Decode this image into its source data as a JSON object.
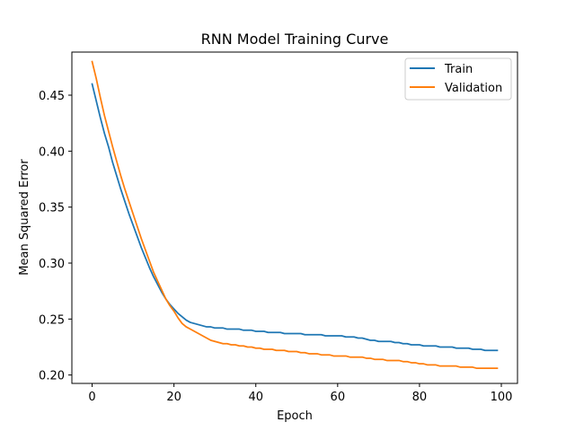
{
  "chart_data": {
    "type": "line",
    "title": "RNN Model Training Curve",
    "xlabel": "Epoch",
    "ylabel": "Mean Squared Error",
    "xlim": [
      -4.95,
      103.95
    ],
    "ylim": [
      0.1925,
      0.4885
    ],
    "xticks": [
      0,
      20,
      40,
      60,
      80,
      100
    ],
    "xtick_labels": [
      "0",
      "20",
      "40",
      "60",
      "80",
      "100"
    ],
    "yticks": [
      0.2,
      0.25,
      0.3,
      0.35,
      0.4,
      0.45
    ],
    "ytick_labels": [
      "0.20",
      "0.25",
      "0.30",
      "0.35",
      "0.40",
      "0.45"
    ],
    "grid": false,
    "legend_position": "upper-right",
    "series": [
      {
        "name": "Train",
        "color": "#1f77b4",
        "x": [
          0,
          1,
          2,
          3,
          4,
          5,
          6,
          7,
          8,
          9,
          10,
          11,
          12,
          13,
          14,
          15,
          16,
          17,
          18,
          19,
          20,
          21,
          22,
          23,
          24,
          25,
          26,
          27,
          28,
          29,
          30,
          31,
          32,
          33,
          34,
          35,
          36,
          37,
          38,
          39,
          40,
          41,
          42,
          43,
          44,
          45,
          46,
          47,
          48,
          49,
          50,
          51,
          52,
          53,
          54,
          55,
          56,
          57,
          58,
          59,
          60,
          61,
          62,
          63,
          64,
          65,
          66,
          67,
          68,
          69,
          70,
          71,
          72,
          73,
          74,
          75,
          76,
          77,
          78,
          79,
          80,
          81,
          82,
          83,
          84,
          85,
          86,
          87,
          88,
          89,
          90,
          91,
          92,
          93,
          94,
          95,
          96,
          97,
          98,
          99
        ],
        "values": [
          0.46,
          0.445,
          0.43,
          0.416,
          0.404,
          0.39,
          0.378,
          0.366,
          0.355,
          0.344,
          0.334,
          0.324,
          0.314,
          0.305,
          0.296,
          0.288,
          0.281,
          0.274,
          0.268,
          0.263,
          0.259,
          0.255,
          0.252,
          0.249,
          0.247,
          0.246,
          0.245,
          0.244,
          0.243,
          0.243,
          0.242,
          0.242,
          0.242,
          0.241,
          0.241,
          0.241,
          0.241,
          0.24,
          0.24,
          0.24,
          0.239,
          0.239,
          0.239,
          0.238,
          0.238,
          0.238,
          0.238,
          0.237,
          0.237,
          0.237,
          0.237,
          0.237,
          0.236,
          0.236,
          0.236,
          0.236,
          0.236,
          0.235,
          0.235,
          0.235,
          0.235,
          0.235,
          0.234,
          0.234,
          0.234,
          0.233,
          0.233,
          0.232,
          0.231,
          0.231,
          0.23,
          0.23,
          0.23,
          0.23,
          0.229,
          0.229,
          0.228,
          0.228,
          0.227,
          0.227,
          0.227,
          0.226,
          0.226,
          0.226,
          0.226,
          0.225,
          0.225,
          0.225,
          0.225,
          0.224,
          0.224,
          0.224,
          0.224,
          0.223,
          0.223,
          0.223,
          0.222,
          0.222,
          0.222,
          0.222
        ]
      },
      {
        "name": "Validation",
        "color": "#ff7f0e",
        "x": [
          0,
          1,
          2,
          3,
          4,
          5,
          6,
          7,
          8,
          9,
          10,
          11,
          12,
          13,
          14,
          15,
          16,
          17,
          18,
          19,
          20,
          21,
          22,
          23,
          24,
          25,
          26,
          27,
          28,
          29,
          30,
          31,
          32,
          33,
          34,
          35,
          36,
          37,
          38,
          39,
          40,
          41,
          42,
          43,
          44,
          45,
          46,
          47,
          48,
          49,
          50,
          51,
          52,
          53,
          54,
          55,
          56,
          57,
          58,
          59,
          60,
          61,
          62,
          63,
          64,
          65,
          66,
          67,
          68,
          69,
          70,
          71,
          72,
          73,
          74,
          75,
          76,
          77,
          78,
          79,
          80,
          81,
          82,
          83,
          84,
          85,
          86,
          87,
          88,
          89,
          90,
          91,
          92,
          93,
          94,
          95,
          96,
          97,
          98,
          99
        ],
        "values": [
          0.48,
          0.465,
          0.448,
          0.432,
          0.418,
          0.404,
          0.391,
          0.378,
          0.366,
          0.355,
          0.344,
          0.333,
          0.322,
          0.312,
          0.302,
          0.292,
          0.284,
          0.276,
          0.268,
          0.262,
          0.257,
          0.251,
          0.246,
          0.243,
          0.241,
          0.239,
          0.237,
          0.235,
          0.233,
          0.231,
          0.23,
          0.229,
          0.228,
          0.228,
          0.227,
          0.227,
          0.226,
          0.226,
          0.225,
          0.225,
          0.224,
          0.224,
          0.223,
          0.223,
          0.223,
          0.222,
          0.222,
          0.222,
          0.221,
          0.221,
          0.221,
          0.22,
          0.22,
          0.219,
          0.219,
          0.219,
          0.218,
          0.218,
          0.218,
          0.217,
          0.217,
          0.217,
          0.217,
          0.216,
          0.216,
          0.216,
          0.216,
          0.215,
          0.215,
          0.214,
          0.214,
          0.214,
          0.213,
          0.213,
          0.213,
          0.213,
          0.212,
          0.212,
          0.211,
          0.211,
          0.21,
          0.21,
          0.209,
          0.209,
          0.209,
          0.208,
          0.208,
          0.208,
          0.208,
          0.208,
          0.207,
          0.207,
          0.207,
          0.207,
          0.206,
          0.206,
          0.206,
          0.206,
          0.206,
          0.206
        ]
      }
    ]
  }
}
